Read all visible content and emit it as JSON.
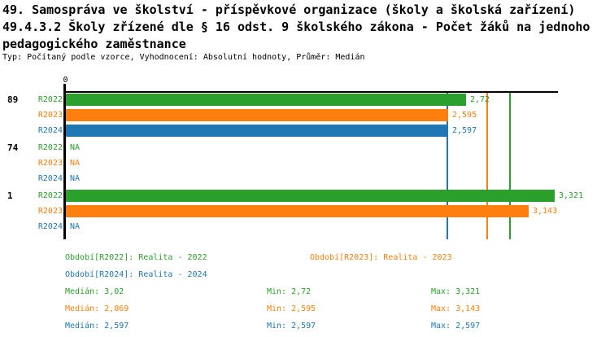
{
  "title": {
    "line1": "49. Samospráva ve školství - příspěvkové organizace (školy a školská zařízení)",
    "line2": "49.4.3.2 Školy zřízené dle § 16 odst. 9 školského zákona - Počet žáků na jednoho",
    "line3": "pedagogického zaměstnance",
    "meta": "Typ: Počítaný podle vzorce, Vyhodnocení: Absolutní hodnoty, Průměr: Medián"
  },
  "colors": {
    "R2022": "#2ca02c",
    "R2023": "#ff7f0e",
    "R2024": "#1f77b4",
    "axis": "#000000"
  },
  "chart_data": {
    "type": "bar",
    "orientation": "horizontal",
    "origin_tick_label": "0",
    "xlim": [
      0,
      3.35
    ],
    "grid": false,
    "series_names": [
      "R2022",
      "R2023",
      "R2024"
    ],
    "groups": [
      {
        "label": "89",
        "bars": [
          {
            "series": "R2022",
            "value": 2.72,
            "value_label": "2,72"
          },
          {
            "series": "R2023",
            "value": 2.595,
            "value_label": "2,595"
          },
          {
            "series": "R2024",
            "value": 2.597,
            "value_label": "2,597"
          }
        ]
      },
      {
        "label": "74",
        "bars": [
          {
            "series": "R2022",
            "value": null,
            "value_label": "NA"
          },
          {
            "series": "R2023",
            "value": null,
            "value_label": "NA"
          },
          {
            "series": "R2024",
            "value": null,
            "value_label": "NA"
          }
        ]
      },
      {
        "label": "1",
        "bars": [
          {
            "series": "R2022",
            "value": 3.321,
            "value_label": "3,321"
          },
          {
            "series": "R2023",
            "value": 3.143,
            "value_label": "3,143"
          },
          {
            "series": "R2024",
            "value": null,
            "value_label": "NA"
          }
        ]
      }
    ],
    "median_lines": [
      {
        "series": "R2022",
        "value": 3.02
      },
      {
        "series": "R2023",
        "value": 2.869
      },
      {
        "series": "R2024",
        "value": 2.597
      }
    ]
  },
  "legend": {
    "items": [
      {
        "series": "R2022",
        "label": "Období[R2022]: Realita - 2022"
      },
      {
        "series": "R2023",
        "label": "Období[R2023]: Realita - 2023"
      },
      {
        "series": "R2024",
        "label": "Období[R2024]: Realita - 2024"
      }
    ]
  },
  "stats": {
    "rows": [
      {
        "series": "R2022",
        "median": "Medián: 3,02",
        "min": "Min: 2,72",
        "max": "Max: 3,321"
      },
      {
        "series": "R2023",
        "median": "Medián: 2,869",
        "min": "Min: 2,595",
        "max": "Max: 3,143"
      },
      {
        "series": "R2024",
        "median": "Medián: 2,597",
        "min": "Min: 2,597",
        "max": "Max: 2,597"
      }
    ]
  }
}
